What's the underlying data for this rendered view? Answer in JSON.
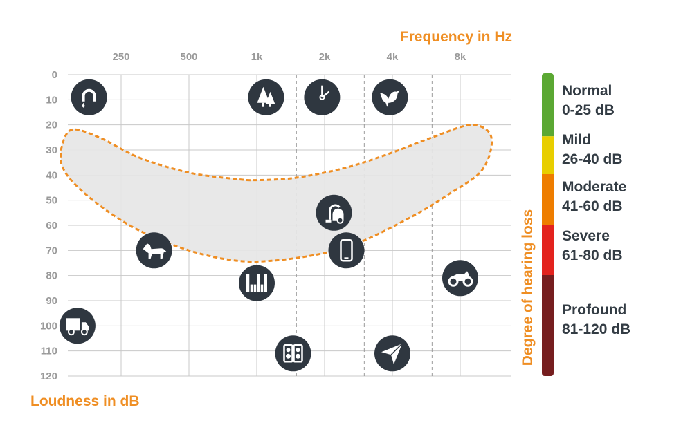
{
  "chart_data": {
    "type": "scatter",
    "title": "",
    "xlabel": "Frequency in Hz",
    "ylabel": "Loudness in dB",
    "x_ticks": [
      "250",
      "500",
      "1k",
      "2k",
      "4k",
      "8k"
    ],
    "y_ticks": [
      "0",
      "10",
      "20",
      "30",
      "40",
      "50",
      "60",
      "70",
      "80",
      "90",
      "100",
      "110",
      "120"
    ],
    "ylim": [
      0,
      120
    ],
    "y_inverted": true,
    "grid": true,
    "speech_banana": [
      [
        135,
        30
      ],
      [
        150,
        22
      ],
      [
        200,
        25
      ],
      [
        300,
        33
      ],
      [
        500,
        39
      ],
      [
        800,
        41.5
      ],
      [
        1000,
        42
      ],
      [
        1500,
        41
      ],
      [
        2500,
        37
      ],
      [
        4000,
        31
      ],
      [
        6000,
        25
      ],
      [
        9000,
        20
      ],
      [
        11000,
        25
      ],
      [
        10000,
        38
      ],
      [
        7000,
        48
      ],
      [
        5000,
        56
      ],
      [
        3000,
        66
      ],
      [
        2000,
        71
      ],
      [
        1200,
        74
      ],
      [
        800,
        74
      ],
      [
        500,
        70
      ],
      [
        300,
        62
      ],
      [
        200,
        52
      ],
      [
        150,
        42
      ],
      [
        135,
        35
      ]
    ],
    "sounds": [
      {
        "icon": "dripping-faucet-icon",
        "x": 180,
        "y": 9
      },
      {
        "icon": "trees-icon",
        "x": 1100,
        "y": 9
      },
      {
        "icon": "clock-icon",
        "x": 1950,
        "y": 9
      },
      {
        "icon": "bird-icon",
        "x": 3900,
        "y": 9
      },
      {
        "icon": "vacuum-cleaner-icon",
        "x": 2200,
        "y": 55
      },
      {
        "icon": "dog-icon",
        "x": 350,
        "y": 70
      },
      {
        "icon": "phone-icon",
        "x": 2500,
        "y": 70
      },
      {
        "icon": "piano-icon",
        "x": 1000,
        "y": 83
      },
      {
        "icon": "motorcycle-icon",
        "x": 8000,
        "y": 81
      },
      {
        "icon": "truck-icon",
        "x": 160,
        "y": 100
      },
      {
        "icon": "speaker-icon",
        "x": 1450,
        "y": 111
      },
      {
        "icon": "airplane-icon",
        "x": 4000,
        "y": 111
      }
    ],
    "severity_axis_label": "Degree of hearing loss",
    "severity": [
      {
        "name": "Normal",
        "range": "0-25 dB",
        "from": 0,
        "to": 25,
        "color": "#5BA833"
      },
      {
        "name": "Mild",
        "range": "26-40 dB",
        "from": 25,
        "to": 40,
        "color": "#E8CE00"
      },
      {
        "name": "Moderate",
        "range": "41-60 dB",
        "from": 40,
        "to": 60,
        "color": "#EE7D00"
      },
      {
        "name": "Severe",
        "range": "61-80 dB",
        "from": 60,
        "to": 80,
        "color": "#E3231E"
      },
      {
        "name": "Profound",
        "range": "81-120 dB",
        "from": 80,
        "to": 120,
        "color": "#761E1F"
      }
    ]
  },
  "colors": {
    "accent": "#EF8E23",
    "icon_bg": "#2F3740",
    "banana_fill": "#E6E6E6",
    "grid": "#C8C8C8",
    "tick_text": "#9A9A9A",
    "label_text": "#333C44"
  }
}
